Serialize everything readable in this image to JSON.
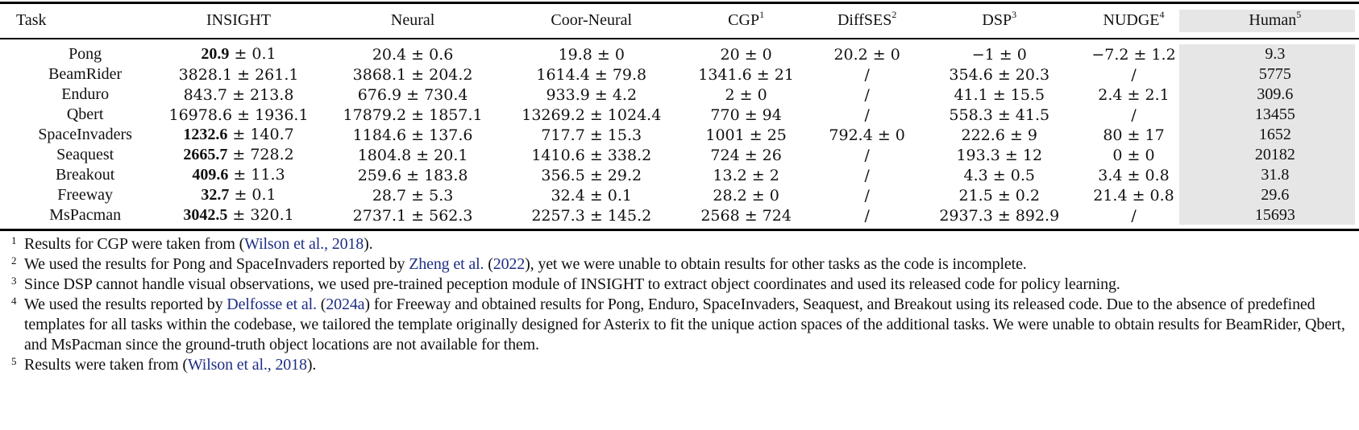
{
  "table": {
    "columns": [
      {
        "label": "Task",
        "footnote": ""
      },
      {
        "label": "INSIGHT",
        "footnote": ""
      },
      {
        "label": "Neural",
        "footnote": ""
      },
      {
        "label": "Coor-Neural",
        "footnote": ""
      },
      {
        "label": "CGP",
        "footnote": "1"
      },
      {
        "label": "DiffSES",
        "footnote": "2"
      },
      {
        "label": "DSP",
        "footnote": "3"
      },
      {
        "label": "NUDGE",
        "footnote": "4"
      },
      {
        "label": "Human",
        "footnote": "5"
      }
    ],
    "highlight_color": "#e6e6e6",
    "rows": [
      {
        "task": "Pong",
        "insight": {
          "mean": "20.9",
          "pm": "± 0.1",
          "best": true
        },
        "neural": "20.4 ± 0.6",
        "coor": "19.8 ± 0",
        "cgp": "20 ± 0",
        "diffses": "20.2 ± 0",
        "dsp": "−1 ± 0",
        "nudge": "−7.2 ± 1.2",
        "human": "9.3"
      },
      {
        "task": "BeamRider",
        "insight": {
          "mean": "3828.1",
          "pm": "± 261.1",
          "best": false
        },
        "neural": "3868.1 ± 204.2",
        "coor": "1614.4 ± 79.8",
        "cgp": "1341.6 ± 21",
        "diffses": "/",
        "dsp": "354.6 ± 20.3",
        "nudge": "/",
        "human": "5775"
      },
      {
        "task": "Enduro",
        "insight": {
          "mean": "843.7",
          "pm": "± 213.8",
          "best": false
        },
        "neural": "676.9 ± 730.4",
        "coor": "933.9 ± 4.2",
        "cgp": "2 ± 0",
        "diffses": "/",
        "dsp": "41.1 ± 15.5",
        "nudge": "2.4 ± 2.1",
        "human": "309.6"
      },
      {
        "task": "Qbert",
        "insight": {
          "mean": "16978.6",
          "pm": "± 1936.1",
          "best": false
        },
        "neural": "17879.2 ± 1857.1",
        "coor": "13269.2 ± 1024.4",
        "cgp": "770 ± 94",
        "diffses": "/",
        "dsp": "558.3 ± 41.5",
        "nudge": "/",
        "human": "13455"
      },
      {
        "task": "SpaceInvaders",
        "insight": {
          "mean": "1232.6",
          "pm": "± 140.7",
          "best": true
        },
        "neural": "1184.6 ± 137.6",
        "coor": "717.7 ± 15.3",
        "cgp": "1001 ± 25",
        "diffses": "792.4 ± 0",
        "dsp": "222.6 ± 9",
        "nudge": "80 ± 17",
        "human": "1652"
      },
      {
        "task": "Seaquest",
        "insight": {
          "mean": "2665.7",
          "pm": "± 728.2",
          "best": true
        },
        "neural": "1804.8 ± 20.1",
        "coor": "1410.6 ± 338.2",
        "cgp": "724 ± 26",
        "diffses": "/",
        "dsp": "193.3 ± 12",
        "nudge": "0 ± 0",
        "human": "20182"
      },
      {
        "task": "Breakout",
        "insight": {
          "mean": "409.6",
          "pm": "± 11.3",
          "best": true
        },
        "neural": "259.6 ± 183.8",
        "coor": "356.5 ± 29.2",
        "cgp": "13.2 ± 2",
        "diffses": "/",
        "dsp": "4.3 ± 0.5",
        "nudge": "3.4 ± 0.8",
        "human": "31.8"
      },
      {
        "task": "Freeway",
        "insight": {
          "mean": "32.7",
          "pm": "± 0.1",
          "best": true
        },
        "neural": "28.7 ± 5.3",
        "coor": "32.4 ± 0.1",
        "cgp": "28.2 ± 0",
        "diffses": "/",
        "dsp": "21.5 ± 0.2",
        "nudge": "21.4 ± 0.8",
        "human": "29.6"
      },
      {
        "task": "MsPacman",
        "insight": {
          "mean": "3042.5",
          "pm": "± 320.1",
          "best": true
        },
        "neural": "2737.1 ± 562.3",
        "coor": "2257.3 ± 145.2",
        "cgp": "2568 ± 724",
        "diffses": "/",
        "dsp": "2937.3 ± 892.9",
        "nudge": "/",
        "human": "15693"
      }
    ]
  },
  "footnotes": [
    {
      "mark": "1",
      "parts": [
        {
          "text": "Results for CGP were taken from (",
          "cite": false
        },
        {
          "text": "Wilson et al., 2018",
          "cite": true
        },
        {
          "text": ").",
          "cite": false
        }
      ]
    },
    {
      "mark": "2",
      "parts": [
        {
          "text": "We used the results for Pong and SpaceInvaders reported by ",
          "cite": false
        },
        {
          "text": "Zheng et al.",
          "cite": true
        },
        {
          "text": " (",
          "cite": false
        },
        {
          "text": "2022",
          "cite": true
        },
        {
          "text": "), yet we were unable to obtain results for other tasks as the code is incomplete.",
          "cite": false
        }
      ]
    },
    {
      "mark": "3",
      "parts": [
        {
          "text": "Since DSP cannot handle visual observations, we used pre-trained peception module of INSIGHT to extract object coordinates and used its released code for policy learning.",
          "cite": false
        }
      ]
    },
    {
      "mark": "4",
      "parts": [
        {
          "text": "We used the results reported by ",
          "cite": false
        },
        {
          "text": "Delfosse et al.",
          "cite": true
        },
        {
          "text": " (",
          "cite": false
        },
        {
          "text": "2024a",
          "cite": true
        },
        {
          "text": ") for Freeway and obtained results for Pong, Enduro, SpaceInvaders, Seaquest, and Breakout using its released code. Due to the absence of predefined templates for all tasks within the codebase, we tailored the template originally designed for Asterix to fit the unique action spaces of the additional tasks. We were unable to obtain results for BeamRider, Qbert, and MsPacman since the ground-truth object locations are not available for them.",
          "cite": false
        }
      ]
    },
    {
      "mark": "5",
      "parts": [
        {
          "text": "Results were taken from (",
          "cite": false
        },
        {
          "text": "Wilson et al., 2018",
          "cite": true
        },
        {
          "text": ").",
          "cite": false
        }
      ]
    }
  ],
  "colors": {
    "citation_link": "#1f2f86",
    "human_column_shade": "#e6e6e6",
    "rule": "#000000"
  }
}
